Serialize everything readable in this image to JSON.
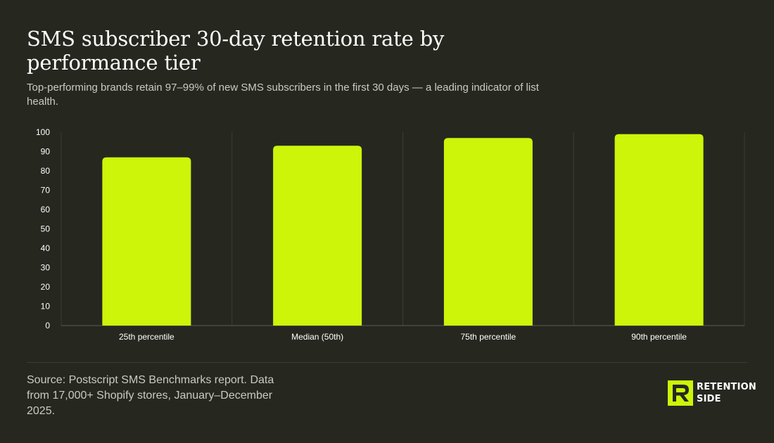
{
  "header": {
    "title": "SMS subscriber 30-day retention rate by performance tier",
    "subtitle": "Top-performing brands retain 97–99% of new SMS subscribers in the first 30 days — a leading indicator of list health."
  },
  "footer": {
    "source": "Source: Postscript SMS Benchmarks report. Data from 17,000+ Shopify stores, January–December 2025.",
    "brand_line1": "RETENTION",
    "brand_line2": "SIDE"
  },
  "colors": {
    "background": "#262820",
    "bar": "#ccf50a",
    "grid": "#3a3d33",
    "axis_text": "#ffffff"
  },
  "icons": {
    "brand_logo": "retention-side-logo-icon"
  },
  "chart_data": {
    "type": "bar",
    "categories": [
      "25th percentile",
      "Median (50th)",
      "75th percentile",
      "90th percentile"
    ],
    "values": [
      87,
      93,
      97,
      99
    ],
    "title": "SMS subscriber 30-day retention rate by performance tier",
    "xlabel": "",
    "ylabel": "",
    "ylim": [
      0,
      100
    ],
    "yticks": [
      0,
      10,
      20,
      30,
      40,
      50,
      60,
      70,
      80,
      90,
      100
    ],
    "grid": true,
    "legend": "none"
  }
}
